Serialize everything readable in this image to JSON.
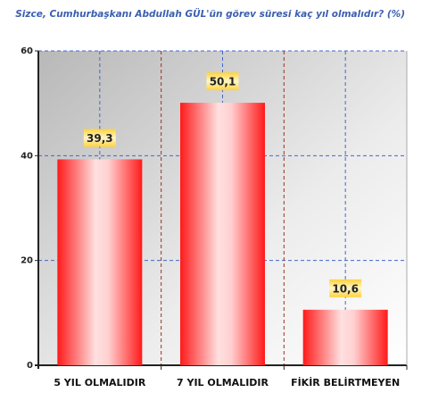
{
  "chart_data": {
    "type": "bar",
    "title": "Sizce, Cumhurbaşkanı Abdullah GÜL'ün görev süresi kaç yıl olmalıdır? (%)",
    "categories": [
      "5 YIL OLMALIDIR",
      "7 YIL OLMALIDIR",
      "FİKİR BELİRTMEYEN"
    ],
    "values": [
      39.3,
      50.1,
      10.6
    ],
    "value_labels": [
      "39,3",
      "50,1",
      "10,6"
    ],
    "color": "#ff1a1a",
    "ylim": [
      0,
      60
    ],
    "yticks": [
      0,
      20,
      40,
      60
    ],
    "grid": true
  }
}
